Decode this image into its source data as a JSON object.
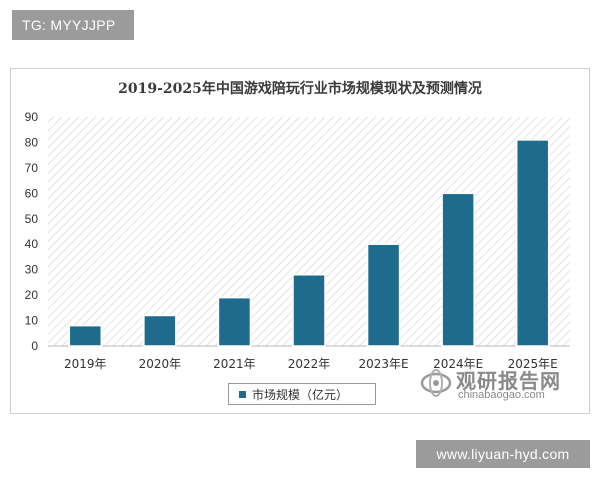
{
  "top_tag": "TG: MYYJJPP",
  "bottom_tag": "www.liyuan-hyd.com",
  "watermark": {
    "name": "观研报告网",
    "url": "chinabaogao.com"
  },
  "chart_data": {
    "type": "bar",
    "title": "2019-2025年中国游戏陪玩行业市场规模现状及预测情况",
    "categories": [
      "2019年",
      "2020年",
      "2021年",
      "2022年",
      "2023年E",
      "2024年E",
      "2025年E"
    ],
    "series": [
      {
        "name": "市场规模（亿元）",
        "values": [
          8,
          12,
          19,
          28,
          40,
          60,
          81
        ]
      }
    ],
    "ylim": [
      0,
      90
    ],
    "yticks": [
      0,
      10,
      20,
      30,
      40,
      50,
      60,
      70,
      80,
      90
    ],
    "xlabel": "",
    "ylabel": "",
    "grid": false,
    "legend_position": "bottom",
    "colors": {
      "bar": "#1f6b8e",
      "hatch": "#e6e6e6"
    }
  }
}
